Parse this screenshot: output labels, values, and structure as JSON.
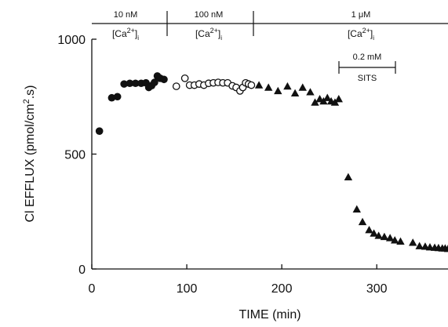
{
  "chart_data": {
    "type": "scatter",
    "xlabel": "TIME  (min)",
    "ylabel": "Cl EFFLUX (pmol/cm2.s)",
    "xlim": [
      0,
      375
    ],
    "ylim": [
      0,
      1000
    ],
    "xticks": [
      0,
      100,
      200,
      300
    ],
    "yticks": [
      0,
      500,
      1000
    ],
    "grid": false,
    "series": [
      {
        "marker": "filled-circle",
        "points": [
          [
            8,
            600
          ],
          [
            21,
            745
          ],
          [
            27,
            750
          ],
          [
            34,
            805
          ],
          [
            40,
            808
          ],
          [
            46,
            808
          ],
          [
            52,
            808
          ],
          [
            57,
            810
          ],
          [
            60,
            790
          ],
          [
            63,
            798
          ],
          [
            66,
            812
          ],
          [
            69,
            840
          ],
          [
            72,
            830
          ],
          [
            76,
            825
          ]
        ]
      },
      {
        "marker": "open-circle",
        "points": [
          [
            89,
            795
          ],
          [
            98,
            830
          ],
          [
            103,
            800
          ],
          [
            108,
            800
          ],
          [
            113,
            805
          ],
          [
            118,
            800
          ],
          [
            123,
            808
          ],
          [
            128,
            810
          ],
          [
            133,
            812
          ],
          [
            138,
            810
          ],
          [
            143,
            810
          ],
          [
            148,
            797
          ],
          [
            152,
            790
          ],
          [
            156,
            775
          ],
          [
            159,
            790
          ],
          [
            162,
            810
          ],
          [
            165,
            805
          ],
          [
            168,
            800
          ]
        ]
      },
      {
        "marker": "filled-triangle",
        "points": [
          [
            176,
            800
          ],
          [
            186,
            790
          ],
          [
            196,
            775
          ],
          [
            206,
            795
          ],
          [
            214,
            765
          ],
          [
            222,
            790
          ],
          [
            230,
            770
          ],
          [
            235,
            725
          ],
          [
            240,
            740
          ],
          [
            244,
            730
          ],
          [
            248,
            745
          ],
          [
            252,
            730
          ],
          [
            256,
            725
          ],
          [
            260,
            740
          ],
          [
            270,
            400
          ],
          [
            279,
            260
          ],
          [
            285,
            205
          ],
          [
            292,
            170
          ],
          [
            297,
            155
          ],
          [
            302,
            145
          ],
          [
            308,
            140
          ],
          [
            314,
            135
          ],
          [
            319,
            125
          ],
          [
            325,
            120
          ],
          [
            338,
            115
          ],
          [
            345,
            100
          ],
          [
            351,
            98
          ],
          [
            356,
            95
          ],
          [
            361,
            93
          ],
          [
            365,
            92
          ],
          [
            369,
            90
          ],
          [
            372,
            90
          ],
          [
            375,
            88
          ]
        ]
      }
    ],
    "annotations": {
      "phase1_label": "10 nM",
      "phase1_sub": "[Ca2+]i",
      "phase2_label": "100 nM",
      "phase2_sub": "[Ca2+]i",
      "phase3_label": "1 μM",
      "phase3_sub": "[Ca2+]i",
      "sits_conc": "0.2 mM",
      "sits_label": "SITS"
    }
  }
}
